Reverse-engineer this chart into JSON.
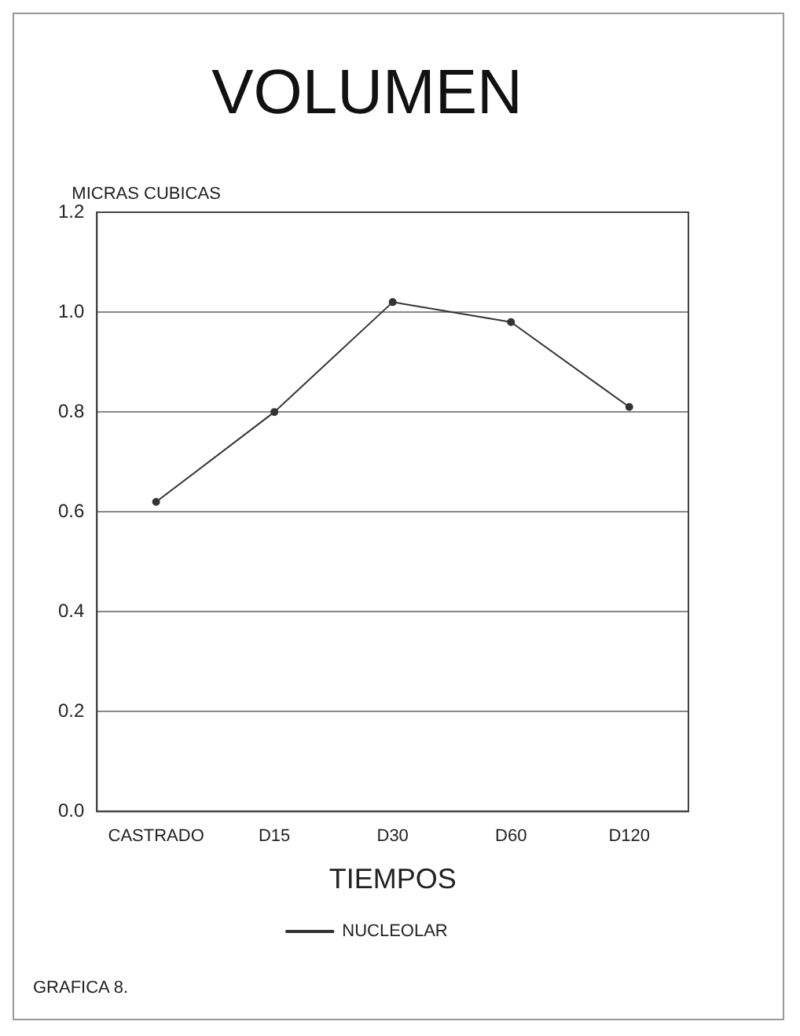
{
  "chart_data": {
    "type": "line",
    "title": "VOLUMEN",
    "ylabel": "MICRAS CUBICAS",
    "xlabel": "TIEMPOS",
    "categories": [
      "CASTRADO",
      "D15",
      "D30",
      "D60",
      "D120"
    ],
    "series": [
      {
        "name": "NUCLEOLAR",
        "color": "#333333",
        "values": [
          0.62,
          0.8,
          1.02,
          0.98,
          0.81
        ]
      }
    ],
    "ylim": [
      0,
      1.2
    ],
    "yticks": [
      {
        "value": 0,
        "label": "0.0"
      },
      {
        "value": 0.2,
        "label": "0.2"
      },
      {
        "value": 0.4,
        "label": "0.4"
      },
      {
        "value": 0.6,
        "label": "0.6"
      },
      {
        "value": 0.8,
        "label": "0.8"
      },
      {
        "value": 1,
        "label": "1.0"
      },
      {
        "value": 1.2,
        "label": "1.2"
      }
    ],
    "grid": "y",
    "legend": "bottom",
    "marker": "circle",
    "line_style": "solid",
    "annotations": [
      "GRAFICA 8."
    ]
  }
}
